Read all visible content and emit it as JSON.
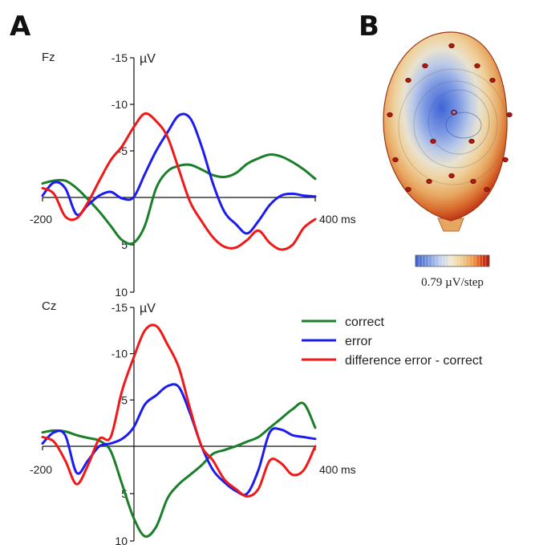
{
  "panels": {
    "a_label": "A",
    "b_label": "B"
  },
  "colors": {
    "correct": "#1b7f2a",
    "error": "#1c1cf0",
    "difference": "#f01818"
  },
  "chart_data": [
    {
      "type": "line",
      "channel": "Fz",
      "unit_label": "µV",
      "time_unit": "ms",
      "xlim": [
        -200,
        400
      ],
      "ylim": [
        -15,
        10
      ],
      "y_inverted": true,
      "x_tick_labels": [
        "-200",
        "400"
      ],
      "y_tick_labels": [
        "-15",
        "-10",
        "-5",
        "5",
        "10"
      ],
      "y_ticks": [
        -15,
        -10,
        -5,
        5,
        10
      ],
      "x": [
        -200,
        -175,
        -150,
        -125,
        -100,
        -75,
        -50,
        -25,
        0,
        25,
        50,
        75,
        100,
        125,
        150,
        175,
        200,
        225,
        250,
        275,
        300,
        325,
        350,
        375,
        400
      ],
      "series": [
        {
          "key": "correct",
          "values": [
            -1.5,
            -1.8,
            -1.8,
            -1.0,
            0.2,
            1.5,
            3.0,
            4.5,
            4.8,
            3.0,
            -1.0,
            -2.8,
            -3.4,
            -3.5,
            -3.0,
            -2.4,
            -2.2,
            -2.6,
            -3.6,
            -4.2,
            -4.6,
            -4.4,
            -3.8,
            -3.0,
            -2.0
          ]
        },
        {
          "key": "error",
          "values": [
            -0.2,
            -1.6,
            -1.0,
            1.8,
            0.8,
            -0.2,
            -0.6,
            0.1,
            0.0,
            -2.5,
            -5.0,
            -7.0,
            -8.8,
            -8.5,
            -5.5,
            -1.5,
            1.5,
            2.8,
            3.8,
            2.5,
            0.8,
            -0.2,
            -0.4,
            -0.2,
            -0.1
          ]
        },
        {
          "key": "difference",
          "values": [
            -1.0,
            -0.4,
            2.0,
            2.2,
            0.5,
            -1.8,
            -4.0,
            -5.5,
            -7.5,
            -9.0,
            -8.2,
            -6.5,
            -3.0,
            0.5,
            2.5,
            4.2,
            5.2,
            5.3,
            4.5,
            3.5,
            4.8,
            5.5,
            5.0,
            3.2,
            2.3
          ]
        }
      ]
    },
    {
      "type": "line",
      "channel": "Cz",
      "unit_label": "µV",
      "time_unit": "ms",
      "xlim": [
        -200,
        400
      ],
      "ylim": [
        -15,
        10
      ],
      "y_inverted": true,
      "x_tick_labels": [
        "-200",
        "400"
      ],
      "y_tick_labels": [
        "-15",
        "-10",
        "-5",
        "5",
        "10"
      ],
      "y_ticks": [
        -15,
        -10,
        -5,
        5,
        10
      ],
      "x": [
        -200,
        -175,
        -150,
        -125,
        -100,
        -75,
        -50,
        -25,
        0,
        25,
        50,
        75,
        100,
        125,
        150,
        175,
        200,
        225,
        250,
        275,
        300,
        325,
        350,
        375,
        400
      ],
      "series": [
        {
          "key": "correct",
          "values": [
            -1.5,
            -1.7,
            -1.6,
            -1.2,
            -0.9,
            -0.6,
            0.5,
            4.0,
            7.5,
            9.5,
            8.5,
            5.5,
            4.0,
            3.0,
            2.0,
            0.8,
            0.4,
            0.0,
            -0.5,
            -1.0,
            -2.0,
            -3.0,
            -4.0,
            -4.6,
            -2.0
          ]
        },
        {
          "key": "error",
          "values": [
            -0.3,
            -1.5,
            -1.2,
            2.8,
            1.5,
            0.0,
            -0.3,
            -0.8,
            -2.0,
            -4.5,
            -5.5,
            -6.5,
            -6.4,
            -3.5,
            0.0,
            2.5,
            3.8,
            4.7,
            5.0,
            2.5,
            -1.5,
            -1.8,
            -1.2,
            -1.0,
            -0.8
          ]
        },
        {
          "key": "difference",
          "values": [
            -1.0,
            -0.5,
            1.5,
            4.0,
            2.0,
            -0.8,
            -1.0,
            -6.0,
            -9.5,
            -12.5,
            -13.0,
            -11.0,
            -8.5,
            -4.0,
            0.0,
            1.5,
            3.5,
            4.5,
            5.3,
            4.5,
            1.5,
            1.8,
            3.0,
            2.5,
            0.0
          ]
        }
      ]
    }
  ],
  "legend": {
    "position": "right",
    "entries": [
      {
        "key": "correct",
        "label": "correct"
      },
      {
        "key": "error",
        "label": "error"
      },
      {
        "key": "difference",
        "label": "difference error - correct"
      }
    ]
  },
  "topomap": {
    "scale_label": "0.79 µV/step",
    "colormap": [
      "#3a5fd0",
      "#7a9ae6",
      "#c8d6ee",
      "#f2ead2",
      "#f3cf8e",
      "#ec9a4a",
      "#d2461d",
      "#a8170d"
    ]
  }
}
